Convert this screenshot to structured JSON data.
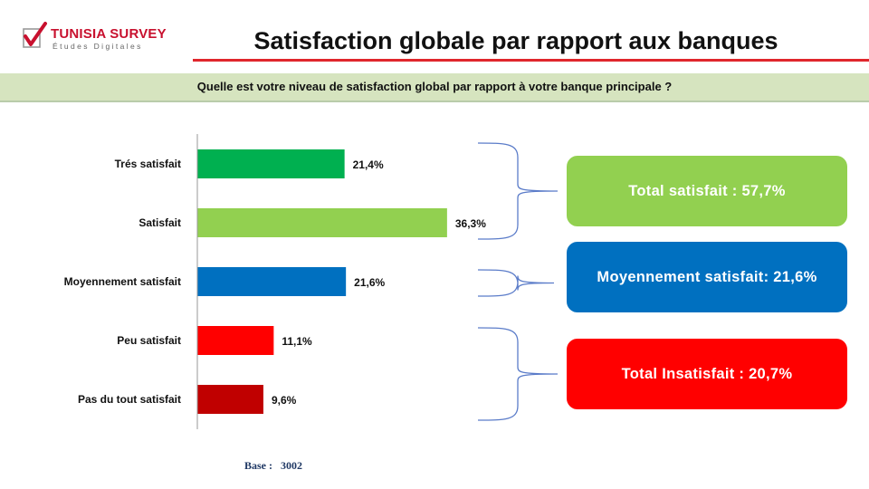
{
  "logo": {
    "name": "TUNISIA SURVEY",
    "tagline": "Études Digitales"
  },
  "page_title": "Satisfaction globale par rapport aux banques",
  "question": "Quelle est votre niveau de satisfaction global par rapport à votre banque principale ?",
  "chart_data": {
    "type": "bar",
    "orientation": "horizontal",
    "categories": [
      "Trés satisfait",
      "Satisfait",
      "Moyennement satisfait",
      "Peu satisfait",
      "Pas du tout satisfait"
    ],
    "values": [
      21.4,
      36.3,
      21.6,
      11.1,
      9.6
    ],
    "value_labels": [
      "21,4%",
      "36,3%",
      "21,6%",
      "11,1%",
      "9,6%"
    ],
    "colors": [
      "#00b050",
      "#92d050",
      "#0070c0",
      "#ff0000",
      "#c00000"
    ],
    "title": "",
    "xlabel": "",
    "ylabel": "",
    "xlim": [
      0,
      40
    ],
    "grid": false,
    "legend": "none"
  },
  "summary": {
    "satisfied": {
      "label": "Total satisfait  : 57,7%",
      "color": "#92d050"
    },
    "moyen": {
      "label": "Moyennement satisfait: 21,6%",
      "color": "#0070c0"
    },
    "insatisfied": {
      "label": "Total  Insatisfait  : 20,7%",
      "color": "#ff0000"
    }
  },
  "base": {
    "label": "Base :",
    "value": "3002"
  }
}
